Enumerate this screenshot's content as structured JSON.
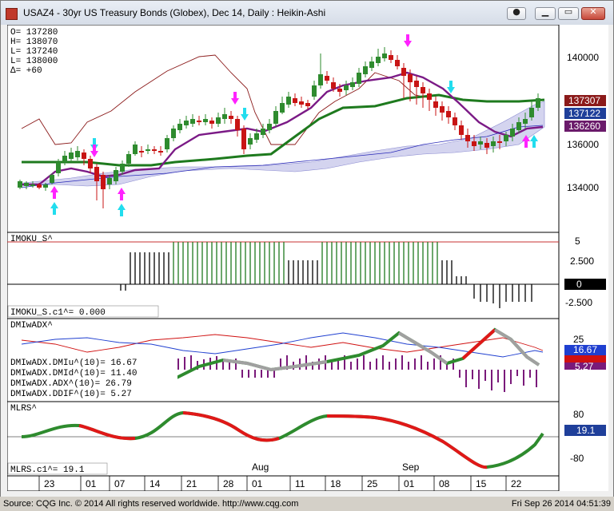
{
  "window": {
    "title": "USAZ4 - 30yr US Treasury Bonds (Globex), Dec 14, Daily : Heikin-Ashi",
    "controls": [
      "menu",
      "minimize",
      "restore",
      "close"
    ]
  },
  "ohlc_panel": {
    "open": "O= 137280",
    "high": "H= 138070",
    "low": "L= 137240",
    "close": "L= 138000",
    "delta": "Δ=        +60"
  },
  "price_scale": {
    "ticks": [
      "140000",
      "136000",
      "134000"
    ],
    "badges": [
      {
        "text": "137307",
        "bg": "#8b1a1a"
      },
      {
        "text": "137122",
        "bg": "#1f3f9a"
      },
      {
        "text": "136260",
        "bg": "#6a1a6a"
      }
    ]
  },
  "ichimoku_panel": {
    "label": "IMOKU_S^",
    "value_label": "IMOKU_S.c1^=           0.000",
    "ticks": [
      "5",
      "2.500",
      "-2.500"
    ],
    "badge": "0"
  },
  "dmi_panel": {
    "label": "DMIwADX^",
    "lines": [
      "DMIwADX.DMIu^(10)=      16.67",
      "DMIwADX.DMId^(10)=      11.40",
      "DMIwADX.ADX^(10)=       26.79",
      "DMIwADX.DDIF^(10)=       5.27"
    ],
    "ticks": [
      "25"
    ],
    "badges": [
      {
        "text": "16.67",
        "bg": "#1f3fd0"
      },
      {
        "text": "11.40",
        "bg": "#d01010"
      },
      {
        "text": "5.27",
        "bg": "#7a1a7a"
      }
    ]
  },
  "mlrs_panel": {
    "label": "MLRS^",
    "value_label": "MLRS.c1^=    19.1",
    "ticks": [
      "80",
      "-80"
    ],
    "badge": "19.1"
  },
  "x_axis": {
    "months": [
      "Aug",
      "Sep"
    ],
    "days": [
      "23",
      "01",
      "07",
      "14",
      "21",
      "28",
      "01",
      "11",
      "18",
      "25",
      "01",
      "08",
      "15",
      "22"
    ]
  },
  "footer": {
    "source": "Source: CQG Inc. © 2014 All rights reserved worldwide. http://www.cqg.com",
    "datetime": "Fri Sep 26 2014 04:51:39"
  },
  "colors": {
    "up_candle": "#2e8b2e",
    "down_candle": "#c81414",
    "kijun": "#7b1a86",
    "senkou_a": "#1e7a1e",
    "cloud": "#8a8ad0",
    "magenta_arrow": "#ff22ff",
    "cyan_arrow": "#22ddee"
  }
}
